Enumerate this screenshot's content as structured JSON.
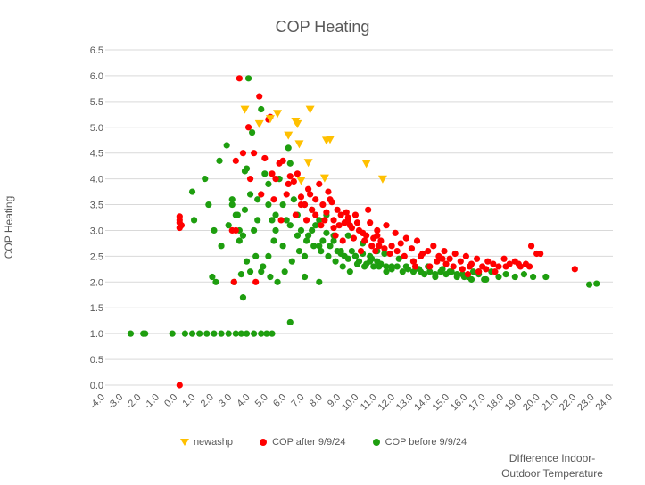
{
  "chart_data": {
    "type": "scatter",
    "title": "COP Heating",
    "ylabel": "COP Heating",
    "xlabel": [
      "DIfference Indoor-",
      "Outdoor Temperature"
    ],
    "xlim": [
      -4,
      24
    ],
    "ylim": [
      0,
      6.5
    ],
    "x_ticks": [
      "-4.0",
      "-3.0",
      "-2.0",
      "-1.0",
      "0.0",
      "1.0",
      "2.0",
      "3.0",
      "4.0",
      "5.0",
      "6.0",
      "7.0",
      "8.0",
      "9.0",
      "10.0",
      "11.0",
      "12.0",
      "13.0",
      "14.0",
      "15.0",
      "16.0",
      "17.0",
      "18.0",
      "19.0",
      "20.0",
      "21.0",
      "22.0",
      "23.0",
      "24.0"
    ],
    "y_ticks": [
      "0.0",
      "0.5",
      "1.0",
      "1.5",
      "2.0",
      "2.5",
      "3.0",
      "3.5",
      "4.0",
      "4.5",
      "5.0",
      "5.5",
      "6.0",
      "6.5"
    ],
    "grid": "horizontal",
    "legend_position": "bottom",
    "series": [
      {
        "name": "newashp",
        "marker": "triangle",
        "color": "#FFC000",
        "x": [
          3.7,
          4.5,
          5.5,
          6.1,
          6.5,
          6.6,
          6.7,
          7.3,
          7.2,
          8.2,
          8.4,
          8.1,
          10.4,
          11.3,
          5.1,
          6.8
        ],
        "y": [
          5.33,
          5.05,
          5.25,
          4.83,
          5.1,
          5.05,
          4.66,
          5.33,
          4.3,
          4.73,
          4.75,
          4.0,
          4.28,
          3.98,
          5.15,
          3.95
        ]
      },
      {
        "name": "COP after 9/9/24",
        "marker": "circle",
        "color": "#FF0000",
        "x": [
          0.1,
          0.1,
          0.1,
          0.2,
          0.1,
          0.1,
          3.0,
          3.2,
          3.4,
          3.6,
          3.9,
          4.2,
          4.5,
          4.6,
          4.8,
          5.0,
          5.2,
          5.4,
          5.6,
          5.8,
          6.0,
          6.2,
          6.4,
          6.6,
          6.8,
          7.0,
          7.2,
          7.4,
          7.6,
          7.8,
          8.0,
          8.2,
          8.4,
          8.6,
          8.8,
          9.0,
          9.2,
          9.4,
          9.6,
          9.8,
          10.0,
          10.2,
          10.4,
          10.6,
          10.8,
          11.0,
          11.2,
          11.5,
          11.8,
          12.0,
          12.3,
          12.6,
          12.9,
          13.2,
          13.5,
          13.8,
          14.1,
          14.4,
          14.7,
          15.0,
          15.3,
          15.6,
          15.9,
          16.2,
          16.5,
          16.8,
          17.1,
          17.4,
          17.7,
          18.0,
          18.3,
          18.6,
          18.9,
          19.2,
          19.5,
          19.8,
          20.0,
          21.9,
          3.1,
          3.2,
          4.0,
          4.3,
          5.1,
          5.3,
          5.7,
          6.1,
          6.5,
          6.8,
          7.1,
          7.3,
          7.6,
          7.9,
          8.1,
          8.3,
          8.5,
          8.7,
          8.9,
          9.1,
          9.3,
          9.5,
          9.7,
          9.9,
          10.1,
          10.3,
          10.5,
          10.7,
          10.9,
          11.1,
          11.4,
          11.7,
          12.1,
          12.5,
          13.0,
          13.4,
          13.9,
          14.3,
          14.8,
          15.2,
          15.7,
          16.1,
          16.6,
          17.0,
          17.5,
          18.1,
          18.8,
          19.4,
          8.6,
          9.4,
          10.2,
          11.0,
          13.1,
          14.6,
          16.0
        ],
        "y": [
          0.0,
          3.27,
          3.2,
          3.1,
          3.15,
          3.05,
          3.0,
          4.35,
          5.95,
          4.5,
          5.0,
          4.5,
          5.6,
          3.7,
          4.4,
          5.15,
          4.1,
          4.0,
          4.3,
          4.35,
          3.7,
          4.05,
          3.95,
          4.1,
          3.65,
          3.5,
          3.8,
          3.4,
          3.6,
          3.9,
          3.5,
          3.35,
          3.6,
          3.2,
          3.4,
          3.3,
          3.15,
          3.2,
          3.05,
          3.3,
          3.0,
          2.95,
          2.9,
          3.15,
          2.85,
          2.9,
          2.8,
          3.1,
          2.7,
          2.95,
          2.75,
          2.85,
          2.65,
          2.8,
          2.55,
          2.6,
          2.7,
          2.5,
          2.6,
          2.45,
          2.55,
          2.4,
          2.5,
          2.35,
          2.45,
          2.3,
          2.4,
          2.35,
          2.3,
          2.45,
          2.35,
          2.4,
          2.3,
          2.35,
          2.7,
          2.55,
          2.55,
          2.25,
          2.0,
          3.0,
          4.0,
          2.0,
          5.2,
          3.6,
          3.2,
          3.9,
          3.3,
          3.5,
          3.2,
          3.7,
          3.3,
          3.1,
          3.2,
          3.75,
          3.55,
          2.9,
          3.1,
          2.8,
          3.35,
          3.1,
          2.85,
          3.15,
          2.6,
          2.8,
          3.4,
          2.7,
          2.6,
          2.7,
          2.65,
          2.55,
          2.6,
          2.5,
          2.4,
          2.5,
          2.3,
          2.4,
          2.35,
          2.3,
          2.25,
          2.3,
          2.2,
          2.25,
          2.2,
          2.3,
          2.35,
          2.3,
          3.05,
          3.25,
          2.95,
          3.0,
          2.3,
          2.45,
          2.15
        ]
      },
      {
        "name": "COP before 9/9/24",
        "marker": "circle",
        "color": "#1E9E0F",
        "x": [
          -2.6,
          -1.9,
          -1.8,
          -0.3,
          0.4,
          0.8,
          1.2,
          1.6,
          2.0,
          2.4,
          2.8,
          3.2,
          3.5,
          3.8,
          4.2,
          4.6,
          5.2,
          0.8,
          0.9,
          1.5,
          1.7,
          2.0,
          2.3,
          2.7,
          3.0,
          3.4,
          3.7,
          3.9,
          4.1,
          4.4,
          4.6,
          4.8,
          5.0,
          5.2,
          5.4,
          5.6,
          5.8,
          6.0,
          6.2,
          6.4,
          6.6,
          6.8,
          7.0,
          7.2,
          7.4,
          7.6,
          7.8,
          8.0,
          8.2,
          8.4,
          8.6,
          8.8,
          9.0,
          9.2,
          9.4,
          9.6,
          9.8,
          10.0,
          10.2,
          10.4,
          10.6,
          10.8,
          11.0,
          11.2,
          11.5,
          11.8,
          12.1,
          12.4,
          12.7,
          13.0,
          13.3,
          13.6,
          13.9,
          14.2,
          14.5,
          14.8,
          15.1,
          15.4,
          15.7,
          16.0,
          16.3,
          16.6,
          16.9,
          17.3,
          17.7,
          18.1,
          18.6,
          19.1,
          19.6,
          20.3,
          22.7,
          23.1,
          3.5,
          4.0,
          3.6,
          3.1,
          4.9,
          6.2,
          3.8,
          3.2,
          2.4,
          2.8,
          1.9,
          2.1,
          3.3,
          3.6,
          4.3,
          4.7,
          5.1,
          5.5,
          5.9,
          6.3,
          6.7,
          7.1,
          7.5,
          7.9,
          8.3,
          8.7,
          9.1,
          9.5,
          9.9,
          10.3,
          10.7,
          11.1,
          11.5,
          3.0,
          3.4,
          3.8,
          4.2,
          4.6,
          5.0,
          5.4,
          5.8,
          6.2,
          6.6,
          7.0,
          7.4,
          7.8,
          8.2,
          8.6,
          9.0,
          9.4,
          9.8,
          10.2,
          10.6,
          11.0,
          11.4,
          11.8,
          12.2,
          12.6,
          13.0,
          13.4,
          13.8,
          14.2,
          14.6,
          15.0,
          15.4,
          15.8,
          16.2,
          16.6,
          17.0,
          5.6,
          3.7,
          4.0,
          4.4,
          5.3,
          5.0,
          7.0,
          7.8,
          6.1
        ],
        "y": [
          1.0,
          1.0,
          1.0,
          1.0,
          1.0,
          1.0,
          1.0,
          1.0,
          1.0,
          1.0,
          1.0,
          1.0,
          1.0,
          1.0,
          1.0,
          1.0,
          1.0,
          3.75,
          3.2,
          4.0,
          3.5,
          3.0,
          4.35,
          4.65,
          3.6,
          3.0,
          4.15,
          5.95,
          4.9,
          3.6,
          5.35,
          4.1,
          3.9,
          3.2,
          3.0,
          4.0,
          3.5,
          3.2,
          4.3,
          3.6,
          3.3,
          3.0,
          3.5,
          2.9,
          3.4,
          3.1,
          3.2,
          2.8,
          3.3,
          2.7,
          2.9,
          2.6,
          2.55,
          2.5,
          2.45,
          2.6,
          2.5,
          2.4,
          2.55,
          2.35,
          2.5,
          2.3,
          2.4,
          2.35,
          2.3,
          2.25,
          2.3,
          2.2,
          2.25,
          2.2,
          2.25,
          2.15,
          2.2,
          2.1,
          2.2,
          2.15,
          2.2,
          2.1,
          2.15,
          2.1,
          2.2,
          2.15,
          2.05,
          2.2,
          2.1,
          2.15,
          2.1,
          2.15,
          2.1,
          2.1,
          1.95,
          1.97,
          2.15,
          2.2,
          1.7,
          2.0,
          1.0,
          1.22,
          4.2,
          3.3,
          2.7,
          3.1,
          2.1,
          2.0,
          3.3,
          2.9,
          2.5,
          2.3,
          2.1,
          2.0,
          2.2,
          2.4,
          2.6,
          2.8,
          2.7,
          2.6,
          2.5,
          2.4,
          2.3,
          2.2,
          2.35,
          2.3,
          2.45,
          2.3,
          2.2,
          3.5,
          2.8,
          2.4,
          3.0,
          2.2,
          2.5,
          3.3,
          2.7,
          3.1,
          2.9,
          2.5,
          3.0,
          2.7,
          2.95,
          2.8,
          2.6,
          2.9,
          2.5,
          2.75,
          2.4,
          2.6,
          2.55,
          2.3,
          2.45,
          2.3,
          2.4,
          2.2,
          2.3,
          2.15,
          2.25,
          2.2,
          2.15,
          2.1,
          2.05,
          2.2,
          2.05,
          4.0,
          3.4,
          3.7,
          3.2,
          2.8,
          3.5,
          2.1,
          2.0,
          4.6
        ]
      }
    ]
  }
}
